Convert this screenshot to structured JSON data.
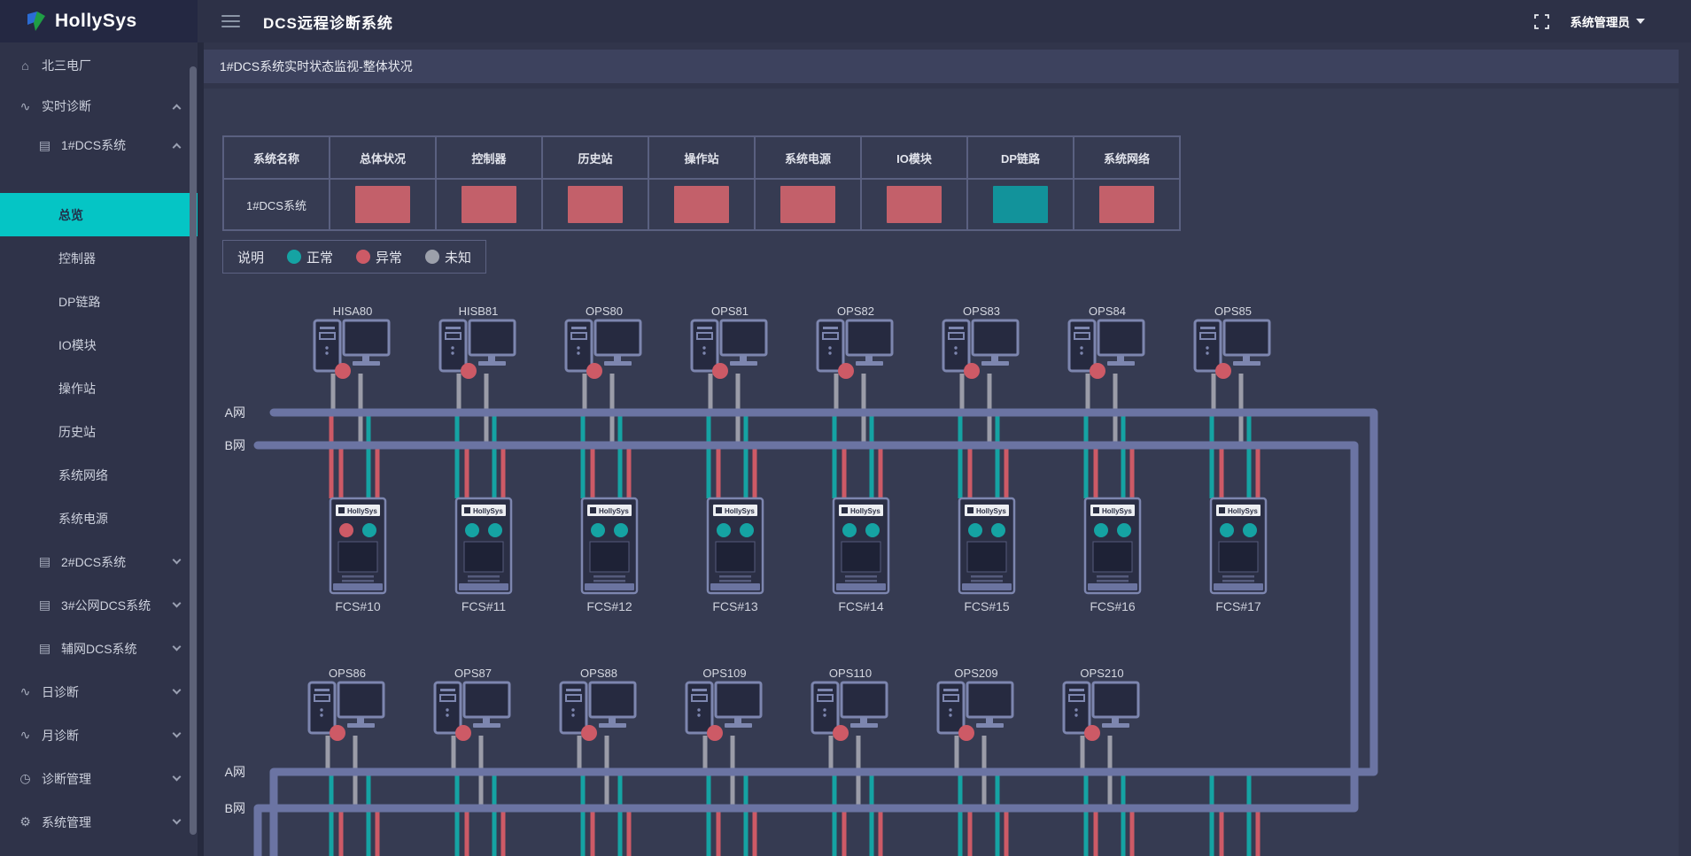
{
  "app": {
    "logo_text": "HollySys",
    "title": "DCS远程诊断系统",
    "user": "系统管理员",
    "breadcrumb": "1#DCS系统实时状态监视-整体状况"
  },
  "colors": {
    "normal": "#15a3a3",
    "abnormal": "#cd5a66",
    "unknown": "#9ca0ab",
    "cell_normal": "#12939b",
    "cell_abnormal": "#c3606a",
    "bus": "#6b74a3",
    "gray_line": "#9b9ca8",
    "icon_stroke": "#7d86af",
    "icon_fill": "#262a40",
    "accent": "#05c5c5"
  },
  "sidebar": {
    "items": [
      {
        "label": "北三电厂",
        "icon": "home",
        "level": 0,
        "caret": "none",
        "active": false
      },
      {
        "label": "实时诊断",
        "icon": "pulse",
        "level": 0,
        "caret": "up",
        "active": false
      },
      {
        "label": "1#DCS系统",
        "icon": "server",
        "level": 1,
        "caret": "up",
        "active": false
      },
      {
        "label": "总览",
        "icon": "",
        "level": 2,
        "caret": "none",
        "active": true
      },
      {
        "label": "控制器",
        "icon": "",
        "level": 2,
        "caret": "none",
        "active": false
      },
      {
        "label": "DP链路",
        "icon": "",
        "level": 2,
        "caret": "none",
        "active": false
      },
      {
        "label": "IO模块",
        "icon": "",
        "level": 2,
        "caret": "none",
        "active": false
      },
      {
        "label": "操作站",
        "icon": "",
        "level": 2,
        "caret": "none",
        "active": false
      },
      {
        "label": "历史站",
        "icon": "",
        "level": 2,
        "caret": "none",
        "active": false
      },
      {
        "label": "系统网络",
        "icon": "",
        "level": 2,
        "caret": "none",
        "active": false
      },
      {
        "label": "系统电源",
        "icon": "",
        "level": 2,
        "caret": "none",
        "active": false
      },
      {
        "label": "2#DCS系统",
        "icon": "server",
        "level": 1,
        "caret": "down",
        "active": false
      },
      {
        "label": "3#公网DCS系统",
        "icon": "server",
        "level": 1,
        "caret": "down",
        "active": false
      },
      {
        "label": "辅网DCS系统",
        "icon": "server",
        "level": 1,
        "caret": "down",
        "active": false
      },
      {
        "label": "日诊断",
        "icon": "pulse",
        "level": 0,
        "caret": "down",
        "active": false
      },
      {
        "label": "月诊断",
        "icon": "pulse",
        "level": 0,
        "caret": "down",
        "active": false
      },
      {
        "label": "诊断管理",
        "icon": "clock",
        "level": 0,
        "caret": "down",
        "active": false
      },
      {
        "label": "系统管理",
        "icon": "gear",
        "level": 0,
        "caret": "down",
        "active": false
      }
    ]
  },
  "status_table": {
    "headers": [
      "系统名称",
      "总体状况",
      "控制器",
      "历史站",
      "操作站",
      "系统电源",
      "IO模块",
      "DP链路",
      "系统网络"
    ],
    "row_label": "1#DCS系统",
    "statuses": [
      "abnormal",
      "abnormal",
      "abnormal",
      "abnormal",
      "abnormal",
      "abnormal",
      "normal",
      "abnormal"
    ]
  },
  "legend": {
    "label": "说明",
    "items": [
      {
        "label": "正常",
        "status": "normal"
      },
      {
        "label": "异常",
        "status": "abnormal"
      },
      {
        "label": "未知",
        "status": "unknown"
      }
    ]
  },
  "diagram": {
    "net_a_label": "A网",
    "net_b_label": "B网",
    "cabinet_brand": "HollySys",
    "row1": {
      "stations": [
        {
          "name": "HISA80",
          "status": "abnormal"
        },
        {
          "name": "HISB81",
          "status": "abnormal"
        },
        {
          "name": "OPS80",
          "status": "abnormal"
        },
        {
          "name": "OPS81",
          "status": "abnormal"
        },
        {
          "name": "OPS82",
          "status": "abnormal"
        },
        {
          "name": "OPS83",
          "status": "abnormal"
        },
        {
          "name": "OPS84",
          "status": "abnormal"
        },
        {
          "name": "OPS85",
          "status": "abnormal"
        }
      ],
      "cabinets": [
        {
          "name": "FCS#10",
          "dots": [
            "abnormal",
            "normal"
          ],
          "drops": [
            "abnormal",
            "abnormal",
            "normal",
            "abnormal"
          ]
        },
        {
          "name": "FCS#11",
          "dots": [
            "normal",
            "normal"
          ],
          "drops": [
            "normal",
            "abnormal",
            "normal",
            "abnormal"
          ]
        },
        {
          "name": "FCS#12",
          "dots": [
            "normal",
            "normal"
          ],
          "drops": [
            "normal",
            "abnormal",
            "normal",
            "abnormal"
          ]
        },
        {
          "name": "FCS#13",
          "dots": [
            "normal",
            "normal"
          ],
          "drops": [
            "normal",
            "abnormal",
            "normal",
            "abnormal"
          ]
        },
        {
          "name": "FCS#14",
          "dots": [
            "normal",
            "normal"
          ],
          "drops": [
            "normal",
            "abnormal",
            "normal",
            "abnormal"
          ]
        },
        {
          "name": "FCS#15",
          "dots": [
            "normal",
            "normal"
          ],
          "drops": [
            "normal",
            "abnormal",
            "normal",
            "abnormal"
          ]
        },
        {
          "name": "FCS#16",
          "dots": [
            "normal",
            "normal"
          ],
          "drops": [
            "normal",
            "abnormal",
            "normal",
            "abnormal"
          ]
        },
        {
          "name": "FCS#17",
          "dots": [
            "normal",
            "normal"
          ],
          "drops": [
            "normal",
            "abnormal",
            "normal",
            "abnormal"
          ]
        }
      ]
    },
    "row2": {
      "stations": [
        {
          "name": "OPS86",
          "status": "abnormal"
        },
        {
          "name": "OPS87",
          "status": "abnormal"
        },
        {
          "name": "OPS88",
          "status": "abnormal"
        },
        {
          "name": "OPS109",
          "status": "abnormal"
        },
        {
          "name": "OPS110",
          "status": "abnormal"
        },
        {
          "name": "OPS209",
          "status": "abnormal"
        },
        {
          "name": "OPS210",
          "status": "abnormal"
        }
      ],
      "drop_groups": [
        [
          "normal",
          "abnormal",
          "normal",
          "abnormal"
        ],
        [
          "normal",
          "abnormal",
          "normal",
          "abnormal"
        ],
        [
          "normal",
          "abnormal",
          "normal",
          "abnormal"
        ],
        [
          "normal",
          "abnormal",
          "normal",
          "abnormal"
        ],
        [
          "normal",
          "abnormal",
          "normal",
          "abnormal"
        ],
        [
          "normal",
          "abnormal",
          "normal",
          "abnormal"
        ],
        [
          "normal",
          "abnormal",
          "normal",
          "abnormal"
        ],
        [
          "normal",
          "abnormal",
          "normal",
          "abnormal"
        ]
      ]
    }
  }
}
